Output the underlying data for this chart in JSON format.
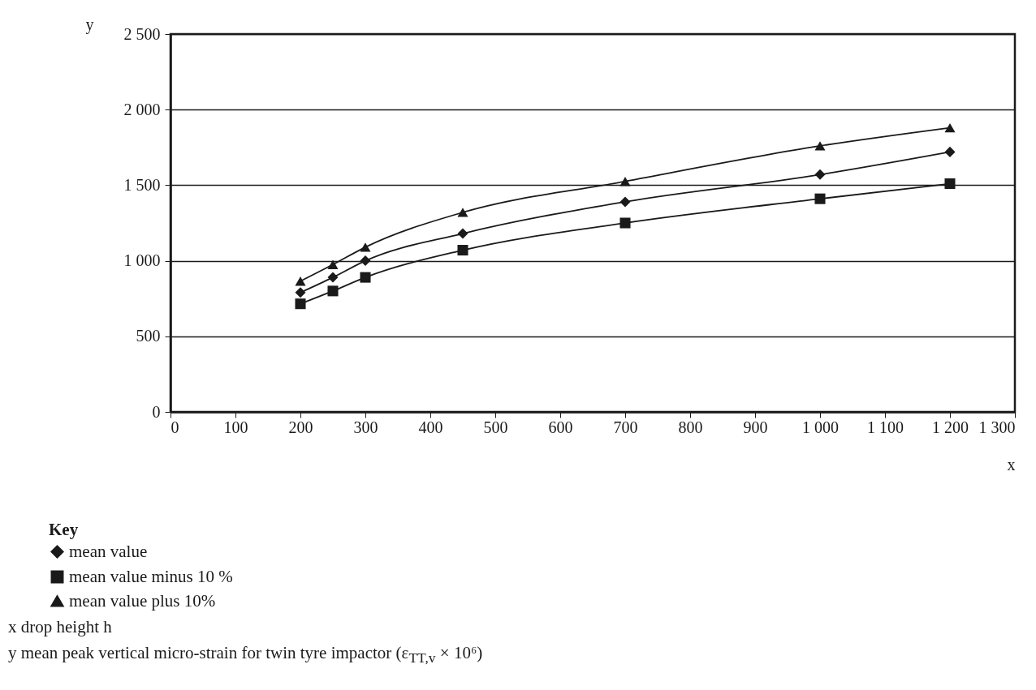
{
  "chart_data": {
    "type": "line",
    "xlabel": "x",
    "ylabel": "y",
    "legend_title": "Key",
    "x": [
      200,
      250,
      300,
      450,
      700,
      1000,
      1200
    ],
    "series": [
      {
        "name": "mean value",
        "color": "#1a1a1a",
        "marker": "diamond",
        "values": [
          790,
          890,
          1000,
          1180,
          1390,
          1570,
          1720
        ]
      },
      {
        "name": "mean value minus 10 %",
        "color": "#1a1a1a",
        "marker": "square",
        "values": [
          715,
          800,
          890,
          1070,
          1250,
          1410,
          1510
        ]
      },
      {
        "name": "mean value plus 10%",
        "color": "#1a1a1a",
        "marker": "triangle",
        "values": [
          865,
          975,
          1090,
          1320,
          1525,
          1760,
          1880
        ]
      }
    ],
    "xlim": [
      0,
      1300
    ],
    "xticks": [
      0,
      100,
      200,
      300,
      400,
      500,
      600,
      700,
      800,
      900,
      {
        "value": 1000,
        "label": "1 000"
      },
      {
        "value": 1100,
        "label": "1 100"
      },
      {
        "value": 1200,
        "label": "1 200"
      },
      {
        "value": 1300,
        "label": "1 300"
      }
    ],
    "ylim": [
      0,
      2500
    ],
    "yticks": [
      0,
      500,
      {
        "value": 1000,
        "label": "1 000"
      },
      {
        "value": 1500,
        "label": "1 500"
      },
      {
        "value": 2000,
        "label": "2 000"
      },
      {
        "value": 2500,
        "label": "2 500"
      }
    ],
    "grid": "y",
    "legend": "bottom left",
    "line_style": "solid",
    "annotations": [
      "x drop height h",
      "y mean peak vertical micro-strain for twin tyre impactor (ε$_{TT,v}$ × 10⁶)"
    ]
  }
}
